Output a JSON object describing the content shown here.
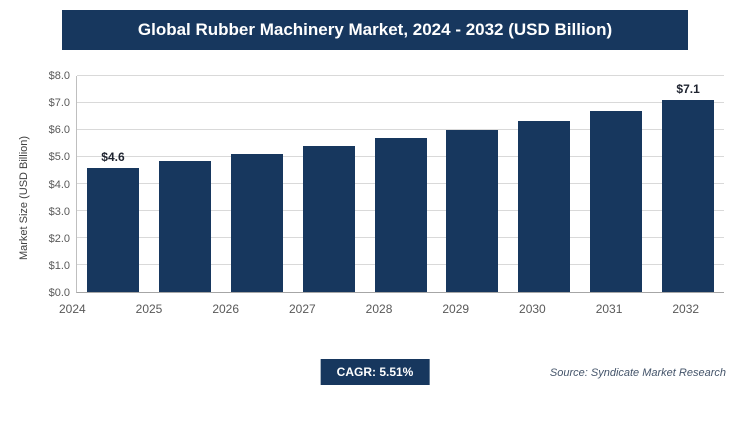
{
  "header": {
    "title": "Global Rubber Machinery Market, 2024 - 2032 (USD Billion)"
  },
  "chart_data": {
    "type": "bar",
    "title": "Global Rubber Machinery Market, 2024 - 2032 (USD Billion)",
    "categories": [
      "2024",
      "2025",
      "2026",
      "2027",
      "2028",
      "2029",
      "2030",
      "2031",
      "2032"
    ],
    "values": [
      4.6,
      4.85,
      5.12,
      5.4,
      5.7,
      6.0,
      6.35,
      6.7,
      7.1
    ],
    "xlabel": "",
    "ylabel": "Market Size (USD Billion)",
    "ylim": [
      0,
      8
    ],
    "ytick_step": 1,
    "ytick_prefix": "$",
    "grid": true,
    "legend": "none",
    "bar_color": "#17375e",
    "annotations": [
      {
        "index": 0,
        "label": "$4.6"
      },
      {
        "index": 8,
        "label": "$7.1"
      }
    ]
  },
  "footer": {
    "cagr_label": "CAGR: 5.51%",
    "source": "Source: Syndicate Market Research"
  }
}
